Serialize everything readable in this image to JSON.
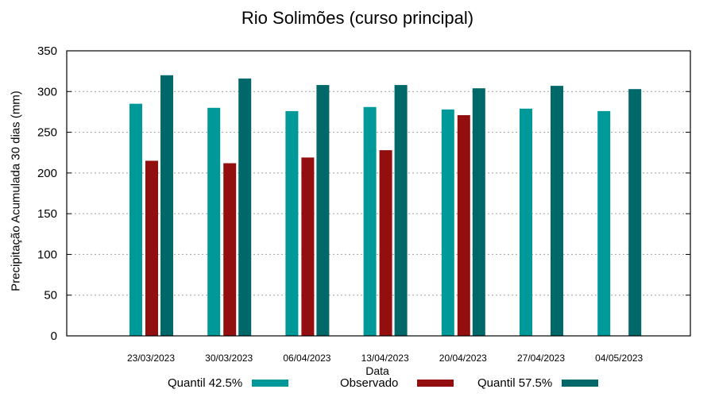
{
  "chart_data": {
    "type": "bar",
    "title": "Rio Solimões (curso principal)",
    "xlabel": "Data",
    "ylabel": "Precipitação Acumulada 30 dias (mm)",
    "ylim": [
      0,
      350
    ],
    "yticks": [
      0,
      50,
      100,
      150,
      200,
      250,
      300,
      350
    ],
    "grid": "horizontal dashed",
    "legend_position": "bottom",
    "categories": [
      "23/03/2023",
      "30/03/2023",
      "06/04/2023",
      "13/04/2023",
      "20/04/2023",
      "27/04/2023",
      "04/05/2023"
    ],
    "series": [
      {
        "name": "Quantil 42.5%",
        "color": "#009999",
        "values": [
          285,
          280,
          276,
          281,
          278,
          279,
          276
        ]
      },
      {
        "name": "Observado",
        "color": "#930F0F",
        "values": [
          215,
          212,
          219,
          228,
          271,
          null,
          null
        ]
      },
      {
        "name": "Quantil 57.5%",
        "color": "#006868",
        "values": [
          320,
          316,
          308,
          308,
          304,
          307,
          303
        ]
      }
    ]
  }
}
